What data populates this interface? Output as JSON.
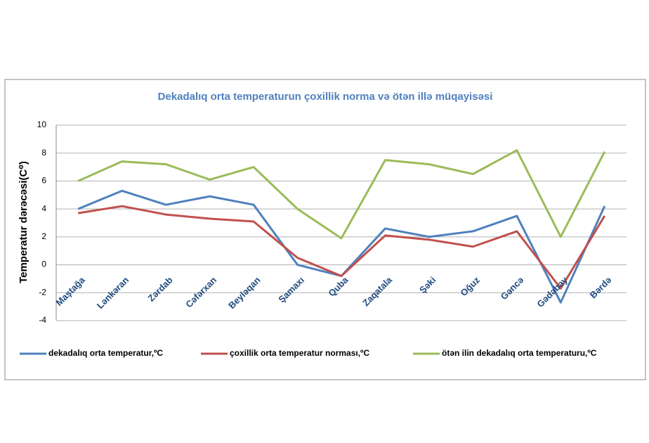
{
  "chart_data": {
    "type": "line",
    "title": "Dekadalıq orta temperaturun çoxillik   norma və ötən illə müqayisəsi",
    "y_label": "Temperatur dərəcəsi(C⁰)",
    "categories": [
      "Maştağa",
      "Lənkəran",
      "Zərdab",
      "Cəfərxan",
      "Beyləqan",
      "Şamaxı",
      "Quba",
      "Zaqatala",
      "Şəki",
      "Oğuz",
      "Gəncə",
      "Gədəbəy",
      "Bərdə"
    ],
    "series": [
      {
        "name": "dekadalıq orta temperatur,ºC",
        "color": "#4f81bd",
        "values": [
          4.0,
          5.3,
          4.3,
          4.9,
          4.3,
          0.0,
          -0.8,
          2.6,
          2.0,
          2.4,
          3.5,
          -2.7,
          4.2
        ]
      },
      {
        "name": "çoxillik orta temperatur norması,ºC",
        "color": "#c0504d",
        "values": [
          3.7,
          4.2,
          3.6,
          3.3,
          3.1,
          0.5,
          -0.8,
          2.1,
          1.8,
          1.3,
          2.4,
          -1.7,
          3.5
        ]
      },
      {
        "name": "ötən ilin dekadalıq orta temperaturu,ºC",
        "color": "#9bbb59",
        "values": [
          6.0,
          7.4,
          7.2,
          6.1,
          7.0,
          4.0,
          1.9,
          7.5,
          7.2,
          6.5,
          8.2,
          2.0,
          8.1
        ]
      }
    ],
    "ylim": [
      -4,
      10
    ],
    "yticks": [
      -4,
      -2,
      0,
      2,
      4,
      6,
      8,
      10
    ],
    "grid": true
  }
}
